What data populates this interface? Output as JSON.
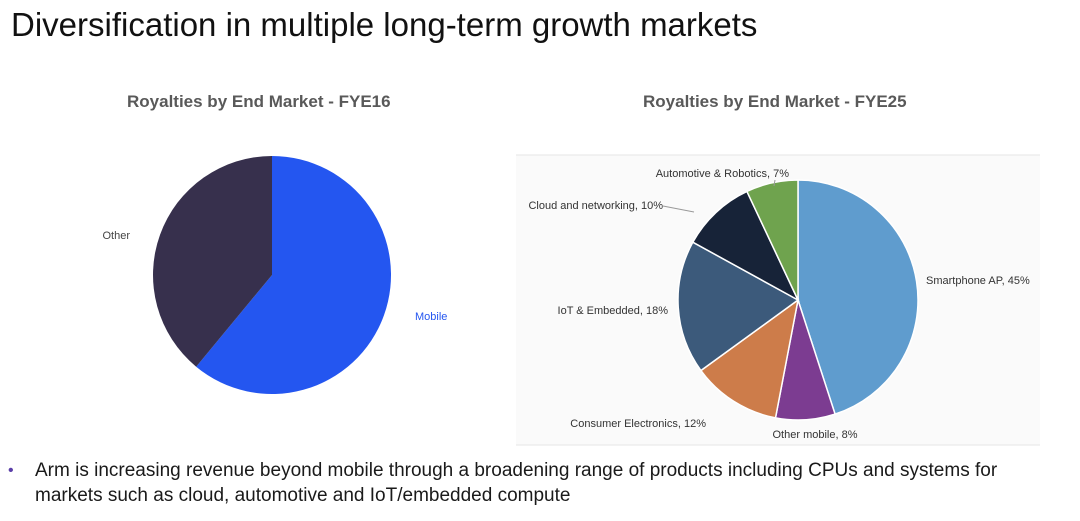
{
  "page": {
    "title": "Diversification in multiple long-term growth markets",
    "bullet_text": "Arm is increasing revenue beyond mobile through a broadening range of products including CPUs and systems for markets such as cloud, automotive and IoT/embedded compute",
    "bullet_symbol": "•"
  },
  "chart_data": [
    {
      "type": "pie",
      "title": "Royalties by End Market - FYE16",
      "labels": [
        "Mobile",
        "Other"
      ],
      "values": [
        61,
        39
      ],
      "colors": [
        "#2456f0",
        "#37304d"
      ],
      "label_colors": [
        "#2456f0",
        "#444444"
      ],
      "show_percent": false
    },
    {
      "type": "pie",
      "title": "Royalties by End Market - FYE25",
      "labels": [
        "Smartphone AP",
        "Other mobile",
        "Consumer Electronics",
        "IoT & Embedded",
        "Cloud and networking",
        "Automotive & Robotics"
      ],
      "values": [
        45,
        8,
        12,
        18,
        10,
        7
      ],
      "colors": [
        "#5f9cce",
        "#7c3c91",
        "#cd7c4a",
        "#3c5a7b",
        "#172338",
        "#6fa34e"
      ],
      "label_colors": [
        "#333333",
        "#333333",
        "#333333",
        "#333333",
        "#333333",
        "#333333"
      ],
      "show_percent": true
    }
  ]
}
